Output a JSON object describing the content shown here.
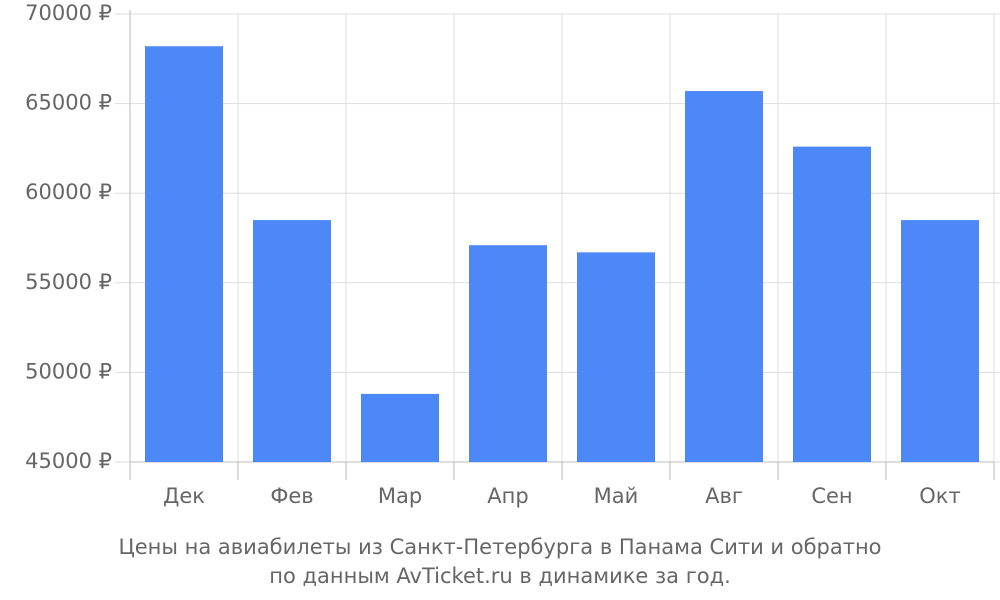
{
  "chart_data": {
    "type": "bar",
    "caption": [
      "Цены на авиабилеты из Санкт-Петербурга в Панама Сити и обратно",
      "по данным AvTicket.ru в динамике за год."
    ],
    "categories": [
      "Дек",
      "Фев",
      "Мар",
      "Апр",
      "Май",
      "Авг",
      "Сен",
      "Окт"
    ],
    "values": [
      68200,
      58500,
      48800,
      57100,
      56700,
      65700,
      62600,
      58500
    ],
    "color": "#4d88f9",
    "ylim": [
      45000,
      70000
    ],
    "yticks": [
      {
        "value": 45000,
        "label": "45000 ₽"
      },
      {
        "value": 50000,
        "label": "50000 ₽"
      },
      {
        "value": 55000,
        "label": "55000 ₽"
      },
      {
        "value": 60000,
        "label": "60000 ₽"
      },
      {
        "value": 65000,
        "label": "65000 ₽"
      },
      {
        "value": 70000,
        "label": "70000 ₽"
      }
    ],
    "grid": true
  }
}
